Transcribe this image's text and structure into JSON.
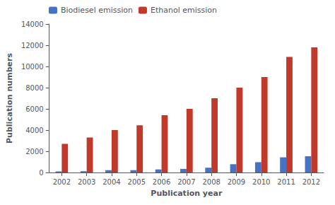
{
  "chart_data": {
    "type": "bar",
    "categories": [
      "2002",
      "2003",
      "2004",
      "2005",
      "2006",
      "2007",
      "2008",
      "2009",
      "2010",
      "2011",
      "2012"
    ],
    "series": [
      {
        "name": "Biodiesel emission",
        "color": "#4472C4",
        "values": [
          100,
          120,
          220,
          220,
          290,
          340,
          450,
          780,
          970,
          1430,
          1530
        ]
      },
      {
        "name": "Ethanol emission",
        "color": "#C0392B",
        "values": [
          2700,
          3300,
          4000,
          4450,
          5400,
          6000,
          7000,
          8000,
          9000,
          10900,
          11800
        ]
      }
    ],
    "xlabel": "Publication year",
    "ylabel": "Publication numbers",
    "ylim": [
      0,
      14000
    ],
    "yticks": [
      0,
      2000,
      4000,
      6000,
      8000,
      10000,
      12000,
      14000
    ],
    "legend": "upper left",
    "grid": false
  }
}
